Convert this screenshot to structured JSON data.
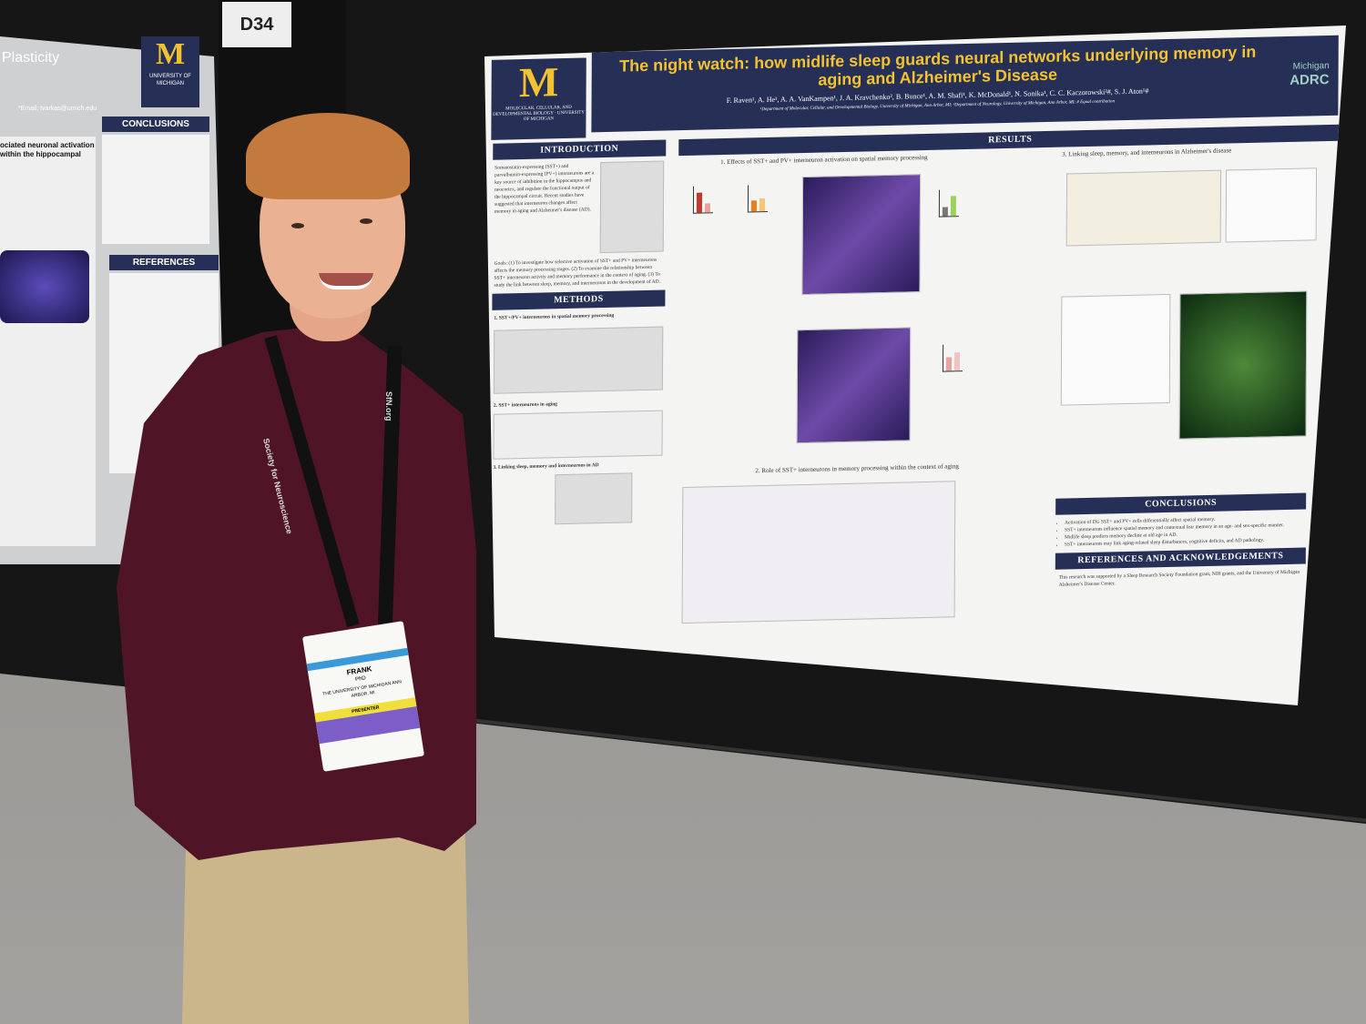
{
  "booth_number": "D34",
  "left_poster": {
    "title_fragment": "Plasticity",
    "university": "UNIVERSITY OF MICHIGAN",
    "email": "*Email: tvarkas@umich.edu",
    "sections": [
      "CONCLUSIONS",
      "REFERENCES"
    ],
    "body_fragment": "ociated neuronal activation within the hippocampal"
  },
  "poster": {
    "title": "The night watch: how midlife sleep guards neural networks underlying memory in aging and Alzheimer's Disease",
    "authors": "F. Raven¹, A. He¹, A. A. VanKampen¹, J. A. Kravchenko², B. Bunce¹, A. M. Shafi¹, K. McDonald¹, N. Sonika¹, C. C. Kaczorowski²#, S. J. Aton¹#",
    "affiliations": "¹Department of Molecular, Cellular, and Developmental Biology, University of Michigan, Ann Arbor, MI; ²Department of Neurology, University of Michigan, Ann Arbor, MI; # Equal contribution",
    "dept_logo": "MOLECULAR, CELLULAR, AND DEVELOPMENTAL BIOLOGY · UNIVERSITY OF MICHIGAN",
    "adrc_logo": {
      "top": "Michigan",
      "bottom": "ADRC"
    },
    "sections": {
      "introduction": "INTRODUCTION",
      "methods": "METHODS",
      "results": "RESULTS",
      "conclusions": "CONCLUSIONS",
      "references": "REFERENCES AND ACKNOWLEDGEMENTS"
    },
    "intro_text": "Somatostatin-expressing (SST+) and parvalbumin-expressing (PV+) interneurons are a key source of inhibition in the hippocampus and neocortex, and regulate the functional output of the hippocampal circuit. Recent studies have suggested that interneuron changes affect memory in aging and Alzheimer's disease (AD).",
    "goals_text": "Goals: (1) To investigate how selective activation of SST+ and PV+ interneurons affects the memory processing stages. (2) To examine the relationship between SST+ interneuron activity and memory performance in the context of aging. (3) To study the link between sleep, memory, and interneurons in the development of AD.",
    "methods_heading": "1. SST+/PV+ interneurons in spatial memory processing",
    "methods_heading_2": "2. SST+ interneurons in aging",
    "methods_heading_3": "3. Linking sleep, memory and interneurons in AD",
    "results_1": "1. Effects of SST+ and PV+ interneuron activation on spatial memory processing",
    "results_2": "2. Role of SST+ interneurons in memory processing within the context of aging",
    "results_3": "3. Linking sleep, memory, and interneurons in Alzheimer's disease",
    "conclusions": [
      "Activation of DG SST+ and PV+ cells differentially affect spatial memory.",
      "SST+ interneurons influence spatial memory and contextual fear memory in an age- and sex-specific manner.",
      "Midlife sleep predicts memory decline at old age in AD.",
      "SST+ interneurons may link aging-related sleep disturbances, cognitive deficits, and AD pathology."
    ],
    "references_text": "This research was supported by a Sleep Research Society Foundation grant, NIH grants, and the University of Michigan Alzheimer's Disease Center."
  },
  "badge": {
    "name": "FRANK",
    "degree": "PhD",
    "institution": "THE UNIVERSITY OF MICHIGAN ANN ARBOR, MI",
    "ribbon": "PRESENTER"
  },
  "lanyard": {
    "text_left": "Society for Neuroscience",
    "text_right": "SfN.org"
  }
}
